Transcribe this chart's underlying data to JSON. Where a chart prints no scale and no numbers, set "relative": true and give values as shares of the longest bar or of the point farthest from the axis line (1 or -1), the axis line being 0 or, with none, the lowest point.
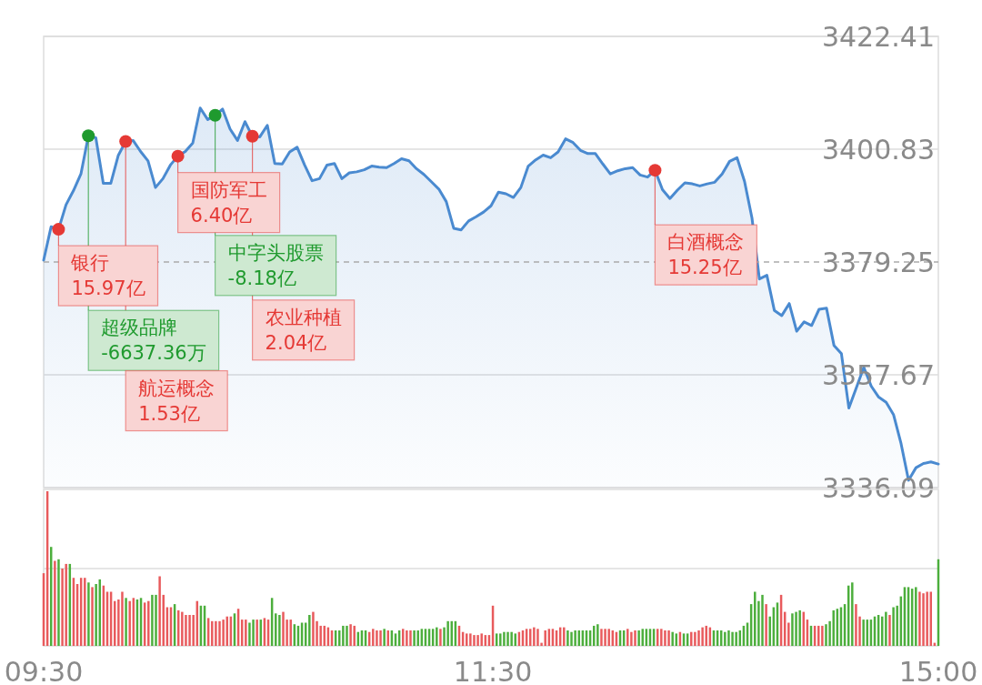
{
  "chart_data": [
    {
      "type": "area",
      "categories": [
        null,
        null,
        null,
        null,
        null,
        null,
        null,
        null,
        null,
        null,
        null,
        null,
        null,
        null,
        null,
        null,
        null,
        null,
        null,
        null,
        null,
        null,
        null,
        null,
        null,
        null,
        null,
        null,
        null,
        null,
        null,
        null,
        null,
        null,
        null,
        null,
        null,
        null,
        null,
        null,
        null,
        null,
        null,
        null,
        null,
        null,
        null,
        null,
        null,
        null,
        null,
        null,
        null,
        null,
        null,
        null,
        null,
        null,
        null,
        null,
        null,
        null,
        null,
        null,
        null,
        null,
        null,
        null,
        null,
        null,
        null,
        null,
        null,
        null,
        null,
        null,
        null,
        null,
        null,
        null,
        null,
        null,
        null,
        null,
        null,
        null,
        null,
        null,
        null,
        null,
        null,
        null,
        null,
        null,
        null,
        null,
        null,
        null,
        null,
        null,
        null,
        null,
        null,
        null,
        null,
        null,
        null,
        null,
        null,
        null,
        null,
        null,
        null,
        null,
        null,
        null,
        null,
        null,
        null,
        null,
        null
      ],
      "series": [
        {
          "color": "#4a8ad0",
          "values": [
            3379.6,
            3386.0,
            3385.5,
            3390.2,
            3392.9,
            3396.1,
            3403.4,
            3403.0,
            3394.3,
            3394.3,
            3399.6,
            3402.3,
            3402.5,
            3400.4,
            3398.6,
            3393.5,
            3395.2,
            3397.8,
            3399.5,
            3400.4,
            3402.0,
            3408.7,
            3406.5,
            3407.3,
            3408.5,
            3404.7,
            3402.5,
            3406.1,
            3403.3,
            3403.2,
            3405.4,
            3398.1,
            3398.0,
            3400.3,
            3401.2,
            3397.8,
            3394.8,
            3395.2,
            3397.8,
            3398.1,
            3395.2,
            3396.3,
            3396.5,
            3396.9,
            3397.6,
            3397.4,
            3397.3,
            3398.1,
            3399.0,
            3398.6,
            3397.1,
            3396.0,
            3394.6,
            3393.2,
            3390.8,
            3385.7,
            3385.4,
            3387.1,
            3387.9,
            3388.8,
            3390.0,
            3392.6,
            3392.3,
            3391.6,
            3393.5,
            3397.6,
            3398.8,
            3399.7,
            3399.2,
            3400.3,
            3402.8,
            3402.1,
            3400.6,
            3400.0,
            3400.0,
            3398.0,
            3396.1,
            3396.7,
            3397.1,
            3397.3,
            3395.9,
            3395.5,
            3396.8,
            3393.1,
            3391.4,
            3393.0,
            3394.4,
            3394.2,
            3393.8,
            3394.2,
            3394.5,
            3396.1,
            3398.5,
            3399.2,
            3394.7,
            3387.7,
            3376.0,
            3376.7,
            3370.0,
            3369.0,
            3371.3,
            3366.0,
            3367.8,
            3367.1,
            3370.2,
            3370.4,
            3363.3,
            3361.7,
            3351.3,
            3355.2,
            3359.1,
            3355.5,
            3353.4,
            3352.4,
            3350.0,
            3344.5,
            3337.5,
            3339.9,
            3340.7,
            3341.0,
            3340.6
          ]
        },
        {
          "type": "scatter",
          "marker": "circle",
          "values": [
            null,
            null,
            3385.5,
            null,
            null,
            null,
            3403.4,
            null,
            null,
            null,
            null,
            3402.3,
            null,
            null,
            null,
            null,
            null,
            null,
            3399.5,
            null,
            null,
            null,
            null,
            3407.3,
            null,
            null,
            null,
            null,
            3403.3,
            null,
            null,
            null,
            null,
            null,
            null,
            null,
            null,
            null,
            null,
            null,
            null,
            null,
            null,
            null,
            null,
            null,
            null,
            null,
            null,
            null,
            null,
            null,
            null,
            null,
            null,
            null,
            null,
            null,
            null,
            null,
            null,
            null,
            null,
            null,
            null,
            null,
            null,
            null,
            null,
            null,
            null,
            null,
            null,
            null,
            null,
            null,
            null,
            null,
            null,
            null,
            null,
            null,
            3396.8,
            null,
            null,
            null,
            null,
            null,
            null,
            null,
            null,
            null,
            null,
            null,
            null,
            null,
            null,
            null,
            null,
            null,
            null,
            null,
            null,
            null,
            null,
            null,
            null,
            null,
            null,
            null,
            null,
            null,
            null,
            null,
            null,
            null,
            null,
            null,
            null,
            null,
            null
          ],
          "colors": [
            null,
            null,
            "#e53935",
            null,
            null,
            null,
            "#1f9a2e",
            null,
            null,
            null,
            null,
            "#e53935",
            null,
            null,
            null,
            null,
            null,
            null,
            "#e53935",
            null,
            null,
            null,
            null,
            "#1f9a2e",
            null,
            null,
            null,
            null,
            "#e53935",
            null,
            null,
            null,
            null,
            null,
            null,
            null,
            null,
            null,
            null,
            null,
            null,
            null,
            null,
            null,
            null,
            null,
            null,
            null,
            null,
            null,
            null,
            null,
            null,
            null,
            null,
            null,
            null,
            null,
            null,
            null,
            null,
            null,
            null,
            null,
            null,
            null,
            null,
            null,
            null,
            null,
            null,
            null,
            null,
            null,
            null,
            null,
            null,
            null,
            null,
            null,
            null,
            null,
            "#e53935",
            null,
            null,
            null,
            null,
            null,
            null,
            null,
            null,
            null,
            null,
            null,
            null,
            null,
            null,
            null,
            null,
            null,
            null,
            null,
            null,
            null,
            null,
            null,
            null,
            null,
            null,
            null,
            null,
            null,
            null,
            null,
            null,
            null,
            null,
            null,
            null,
            null,
            null
          ]
        }
      ],
      "ylim": [
        3336.09,
        3422.41
      ],
      "yticks": [
        3336.09,
        3357.67,
        3379.25,
        3400.83,
        3422.41
      ],
      "ref_lines": [
        {
          "axis": "y",
          "value": 3379.25,
          "color": "#aaaaaa",
          "line_style": "dashed"
        }
      ],
      "grid": "y",
      "tick_labels": "y",
      "annotations": [
        "银行\n15.97亿",
        "超级品牌\n-6637.36万",
        "航运概念\n1.53亿",
        "国防军工\n6.40亿",
        "中字头股票\n-8.18亿",
        "农业种植\n2.04亿",
        "白酒概念\n15.25亿"
      ]
    },
    {
      "type": "bar",
      "relative": true,
      "tick_labels": "x",
      "ref_lines": [
        {
          "axis": "y",
          "value": 0.5,
          "color": "#dddddd",
          "line_style": "solid"
        }
      ],
      "categories": [
        "09:30",
        null,
        null,
        null,
        null,
        null,
        null,
        null,
        null,
        null,
        null,
        null,
        null,
        null,
        null,
        null,
        null,
        null,
        null,
        null,
        null,
        null,
        null,
        null,
        null,
        null,
        null,
        null,
        null,
        null,
        null,
        null,
        null,
        null,
        null,
        null,
        null,
        null,
        null,
        null,
        null,
        null,
        null,
        null,
        null,
        null,
        null,
        null,
        null,
        null,
        null,
        null,
        null,
        null,
        null,
        null,
        null,
        null,
        null,
        null,
        null,
        null,
        null,
        null,
        null,
        null,
        null,
        null,
        null,
        null,
        null,
        null,
        null,
        null,
        null,
        null,
        null,
        null,
        null,
        null,
        null,
        null,
        null,
        null,
        null,
        null,
        null,
        null,
        null,
        null,
        null,
        null,
        null,
        null,
        null,
        null,
        null,
        null,
        null,
        null,
        null,
        null,
        null,
        null,
        null,
        null,
        null,
        null,
        null,
        null,
        null,
        null,
        null,
        null,
        null,
        null,
        null,
        null,
        null,
        null,
        "11:30",
        null,
        null,
        null,
        null,
        null,
        null,
        null,
        null,
        null,
        null,
        null,
        null,
        null,
        null,
        null,
        null,
        null,
        null,
        null,
        null,
        null,
        null,
        null,
        null,
        null,
        null,
        null,
        null,
        null,
        null,
        null,
        null,
        null,
        null,
        null,
        null,
        null,
        null,
        null,
        null,
        null,
        null,
        null,
        null,
        null,
        null,
        null,
        null,
        null,
        null,
        null,
        null,
        null,
        null,
        null,
        null,
        null,
        null,
        null,
        null,
        null,
        null,
        null,
        null,
        null,
        null,
        null,
        null,
        null,
        null,
        null,
        null,
        null,
        null,
        null,
        null,
        null,
        null,
        null,
        null,
        null,
        null,
        null,
        null,
        null,
        null,
        null,
        null,
        null,
        null,
        null,
        null,
        null,
        null,
        null,
        null,
        null,
        null,
        null,
        null,
        null,
        null,
        null,
        null,
        null,
        null,
        null,
        null,
        null,
        null,
        null,
        null,
        null,
        null,
        null,
        null,
        null,
        null,
        "15:00"
      ],
      "values": [
        0.47,
        1,
        0.64,
        0.55,
        0.56,
        0.5,
        0.53,
        0.53,
        0.44,
        0.4,
        0.44,
        0.44,
        0.41,
        0.38,
        0.4,
        0.43,
        0.39,
        0.35,
        0.35,
        0.29,
        0.3,
        0.35,
        0.31,
        0.29,
        0.31,
        0.3,
        0.31,
        0.28,
        0.29,
        0.33,
        0.33,
        0.45,
        0.33,
        0.25,
        0.25,
        0.27,
        0.23,
        0.22,
        0.2,
        0.2,
        0.2,
        0.29,
        0.26,
        0.26,
        0.18,
        0.16,
        0.16,
        0.16,
        0.17,
        0.19,
        0.19,
        0.21,
        0.24,
        0.17,
        0.17,
        0.15,
        0.17,
        0.17,
        0.17,
        0.18,
        0.17,
        0.31,
        0.21,
        0.2,
        0.22,
        0.17,
        0.17,
        0.14,
        0.13,
        0.15,
        0.15,
        0.2,
        0.22,
        0.16,
        0.13,
        0.13,
        0.12,
        0.1,
        0.1,
        0.1,
        0.13,
        0.13,
        0.14,
        0.13,
        0.09,
        0.1,
        0.1,
        0.09,
        0.11,
        0.1,
        0.1,
        0.11,
        0.1,
        0.1,
        0.08,
        0.1,
        0.11,
        0.1,
        0.1,
        0.1,
        0.1,
        0.11,
        0.11,
        0.11,
        0.11,
        0.12,
        0.11,
        0.12,
        0.16,
        0.16,
        0.16,
        0.13,
        0.09,
        0.08,
        0.08,
        0.07,
        0.07,
        0.08,
        0.07,
        0.07,
        0.26,
        0.08,
        0.08,
        0.09,
        0.09,
        0.09,
        0.08,
        0.09,
        0.1,
        0.11,
        0.11,
        0.12,
        0.11,
        0.02,
        0.1,
        0.11,
        0.11,
        0.1,
        0.12,
        0.12,
        0.1,
        0.09,
        0.1,
        0.1,
        0.1,
        0.1,
        0.1,
        0.13,
        0.14,
        0.11,
        0.11,
        0.11,
        0.1,
        0.09,
        0.1,
        0.1,
        0.11,
        0.09,
        0.1,
        0.1,
        0.11,
        0.11,
        0.11,
        0.11,
        0.11,
        0.11,
        0.1,
        0.1,
        0.09,
        0.08,
        0.09,
        0.08,
        0.08,
        0.09,
        0.09,
        0.1,
        0.12,
        0.13,
        0.12,
        0.1,
        0.1,
        0.1,
        0.09,
        0.1,
        0.09,
        0.09,
        0.1,
        0.13,
        0.15,
        0.27,
        0.35,
        0.29,
        0.33,
        0.27,
        0.19,
        0.25,
        0.28,
        0.33,
        0.22,
        0.15,
        0.21,
        0.22,
        0.23,
        0.22,
        0.17,
        0.13,
        0.13,
        0.13,
        0.13,
        0.14,
        0.16,
        0.23,
        0.24,
        0.25,
        0.27,
        0.39,
        0.41,
        0.27,
        0.19,
        0.17,
        0.17,
        0.17,
        0.19,
        0.2,
        0.19,
        0.22,
        0.2,
        0.25,
        0.26,
        0.32,
        0.38,
        0.38,
        0.37,
        0.38,
        0.35,
        0.34,
        0.35,
        0.35,
        0.02,
        0.56
      ],
      "colors": [
        "#e85a5c",
        "#e85a5c",
        "#4cae3c",
        "#e85a5c",
        "#4cae3c",
        "#e85a5c",
        "#e85a5c",
        "#4cae3c",
        "#e85a5c",
        "#e85a5c",
        "#e85a5c",
        "#e85a5c",
        "#4cae3c",
        "#e85a5c",
        "#4cae3c",
        "#4cae3c",
        "#e85a5c",
        "#e85a5c",
        "#e85a5c",
        "#e85a5c",
        "#e85a5c",
        "#e85a5c",
        "#4cae3c",
        "#e85a5c",
        "#e85a5c",
        "#4cae3c",
        "#4cae3c",
        "#e85a5c",
        "#e85a5c",
        "#4cae3c",
        "#4cae3c",
        "#e85a5c",
        "#e85a5c",
        "#e85a5c",
        "#e85a5c",
        "#4cae3c",
        "#e85a5c",
        "#e85a5c",
        "#e85a5c",
        "#e85a5c",
        "#e85a5c",
        "#e85a5c",
        "#4cae3c",
        "#4cae3c",
        "#e85a5c",
        "#e85a5c",
        "#e85a5c",
        "#e85a5c",
        "#e85a5c",
        "#e85a5c",
        "#e85a5c",
        "#4cae3c",
        "#e85a5c",
        "#e85a5c",
        "#e85a5c",
        "#4cae3c",
        "#4cae3c",
        "#e85a5c",
        "#4cae3c",
        "#e85a5c",
        "#e85a5c",
        "#4cae3c",
        "#4cae3c",
        "#4cae3c",
        "#e85a5c",
        "#e85a5c",
        "#e85a5c",
        "#4cae3c",
        "#4cae3c",
        "#4cae3c",
        "#4cae3c",
        "#4cae3c",
        "#e85a5c",
        "#e85a5c",
        "#e85a5c",
        "#e85a5c",
        "#e85a5c",
        "#e85a5c",
        "#4cae3c",
        "#4cae3c",
        "#4cae3c",
        "#4cae3c",
        "#e85a5c",
        "#e85a5c",
        "#4cae3c",
        "#4cae3c",
        "#4cae3c",
        "#e85a5c",
        "#e85a5c",
        "#e85a5c",
        "#e85a5c",
        "#4cae3c",
        "#e85a5c",
        "#4cae3c",
        "#4cae3c",
        "#4cae3c",
        "#e85a5c",
        "#e85a5c",
        "#e85a5c",
        "#4cae3c",
        "#4cae3c",
        "#4cae3c",
        "#4cae3c",
        "#4cae3c",
        "#4cae3c",
        "#4cae3c",
        "#e85a5c",
        "#4cae3c",
        "#4cae3c",
        "#4cae3c",
        "#4cae3c",
        "#e85a5c",
        "#e85a5c",
        "#e85a5c",
        "#e85a5c",
        "#e85a5c",
        "#e85a5c",
        "#e85a5c",
        "#e85a5c",
        "#e85a5c",
        "#e85a5c",
        "#4cae3c",
        "#4cae3c",
        "#4cae3c",
        "#4cae3c",
        "#4cae3c",
        "#4cae3c",
        "#e85a5c",
        "#e85a5c",
        "#e85a5c",
        "#e85a5c",
        "#e85a5c",
        "#e85a5c",
        "#e85a5c",
        "#e85a5c",
        "#e85a5c",
        "#e85a5c",
        "#e85a5c",
        "#e85a5c",
        "#e85a5c",
        "#4cae3c",
        "#4cae3c",
        "#4cae3c",
        "#4cae3c",
        "#4cae3c",
        "#4cae3c",
        "#4cae3c",
        "#4cae3c",
        "#4cae3c",
        "#e85a5c",
        "#e85a5c",
        "#e85a5c",
        "#e85a5c",
        "#e85a5c",
        "#4cae3c",
        "#4cae3c",
        "#e85a5c",
        "#e85a5c",
        "#e85a5c",
        "#4cae3c",
        "#4cae3c",
        "#4cae3c",
        "#4cae3c",
        "#4cae3c",
        "#e85a5c",
        "#e85a5c",
        "#e85a5c",
        "#e85a5c",
        "#4cae3c",
        "#4cae3c",
        "#e85a5c",
        "#4cae3c",
        "#4cae3c",
        "#e85a5c",
        "#e85a5c",
        "#e85a5c",
        "#e85a5c",
        "#e85a5c",
        "#e85a5c",
        "#4cae3c",
        "#4cae3c",
        "#4cae3c",
        "#4cae3c",
        "#4cae3c",
        "#4cae3c",
        "#4cae3c",
        "#4cae3c",
        "#4cae3c",
        "#4cae3c",
        "#4cae3c",
        "#4cae3c",
        "#4cae3c",
        "#4cae3c",
        "#e85a5c",
        "#4cae3c",
        "#4cae3c",
        "#4cae3c",
        "#e85a5c",
        "#e85a5c",
        "#e85a5c",
        "#4cae3c",
        "#4cae3c",
        "#4cae3c",
        "#e85a5c",
        "#e85a5c",
        "#4cae3c",
        "#e85a5c",
        "#e85a5c",
        "#e85a5c",
        "#4cae3c",
        "#4cae3c",
        "#4cae3c",
        "#4cae3c",
        "#4cae3c",
        "#4cae3c",
        "#4cae3c",
        "#4cae3c",
        "#e85a5c",
        "#e85a5c",
        "#4cae3c",
        "#4cae3c",
        "#4cae3c",
        "#4cae3c",
        "#4cae3c",
        "#4cae3c",
        "#4cae3c",
        "#e85a5c",
        "#4cae3c",
        "#4cae3c",
        "#4cae3c",
        "#4cae3c",
        "#4cae3c",
        "#4cae3c",
        "#4cae3c",
        "#e85a5c",
        "#e85a5c",
        "#e85a5c",
        "#e85a5c",
        "#e85a5c",
        "#4cae3c"
      ]
    }
  ]
}
